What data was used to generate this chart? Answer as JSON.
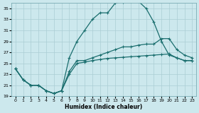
{
  "xlabel": "Humidex (Indice chaleur)",
  "bg_color": "#cce8ed",
  "grid_color": "#aacdd4",
  "line_color": "#1a6e6e",
  "xlim": [
    -0.5,
    23.5
  ],
  "ylim": [
    19,
    36
  ],
  "xticks": [
    0,
    1,
    2,
    3,
    4,
    5,
    6,
    7,
    8,
    9,
    10,
    11,
    12,
    13,
    14,
    15,
    16,
    17,
    18,
    19,
    20,
    21,
    22,
    23
  ],
  "yticks": [
    19,
    21,
    23,
    25,
    27,
    29,
    31,
    33,
    35
  ],
  "line1_x": [
    0,
    1,
    2,
    3,
    4,
    5,
    6,
    7,
    8,
    9,
    10,
    11,
    12,
    13,
    14,
    15,
    16,
    17,
    18,
    19,
    20,
    21,
    22,
    23
  ],
  "line1_y": [
    24,
    22,
    21,
    21,
    20,
    19.5,
    20,
    23,
    25,
    25.2,
    25.5,
    25.7,
    25.9,
    26.0,
    26.1,
    26.2,
    26.3,
    26.4,
    26.5,
    26.6,
    26.7,
    26,
    25.5,
    25.5
  ],
  "line2_x": [
    0,
    1,
    2,
    3,
    4,
    5,
    6,
    7,
    8,
    9,
    10,
    11,
    12,
    13,
    14,
    15,
    16,
    17,
    18,
    19,
    20,
    21,
    22,
    23
  ],
  "line2_y": [
    24,
    22,
    21,
    21,
    20,
    19.5,
    20,
    26,
    29,
    31,
    33,
    34.2,
    34.2,
    36,
    36.2,
    36.3,
    36.3,
    35,
    32.5,
    29,
    26.5,
    26,
    25.5,
    25.5
  ],
  "line3_x": [
    0,
    1,
    2,
    3,
    4,
    5,
    6,
    7,
    8,
    9,
    10,
    11,
    12,
    13,
    14,
    15,
    16,
    17,
    18,
    19,
    20,
    21,
    22,
    23
  ],
  "line3_y": [
    24,
    22,
    21,
    21,
    20,
    19.5,
    20,
    23.5,
    25.5,
    25.5,
    26,
    26.5,
    27,
    27.5,
    28,
    28,
    28.3,
    28.5,
    28.5,
    29.5,
    29.5,
    27.5,
    26.5,
    26
  ],
  "marker": "+"
}
